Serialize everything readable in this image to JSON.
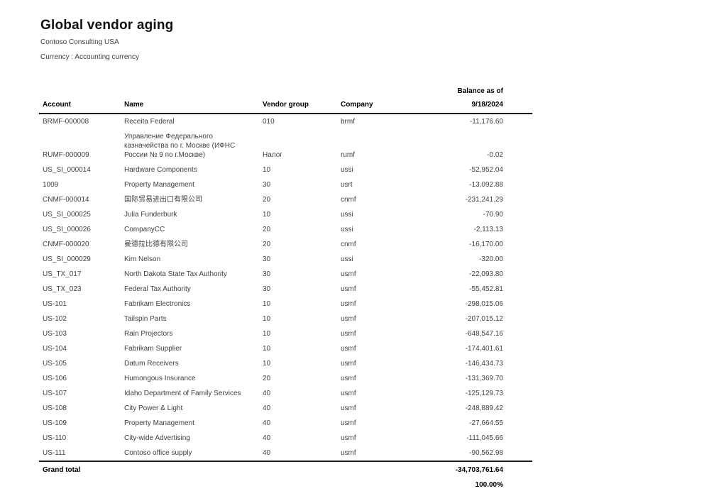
{
  "report": {
    "title": "Global vendor aging",
    "company": "Contoso Consulting USA",
    "currency_line": "Currency : Accounting currency"
  },
  "table": {
    "balance_header_line1": "Balance as of",
    "balance_header_line2": "9/18/2024",
    "columns": {
      "account": "Account",
      "name": "Name",
      "vendor_group": "Vendor group",
      "company": "Company"
    },
    "rows": [
      {
        "account": "BRMF-000008",
        "name": "Receita Federal",
        "vendor_group": "010",
        "company": "brmf",
        "balance": "-11,176.60"
      },
      {
        "account": "RUMF-000009",
        "name": "Управление Федерального казначейства по г. Москве (ИФНС России № 9 по г.Москве)",
        "vendor_group": "Налог",
        "company": "rumf",
        "balance": "-0.02"
      },
      {
        "account": "US_SI_000014",
        "name": "Hardware Components",
        "vendor_group": "10",
        "company": "ussi",
        "balance": "-52,952.04"
      },
      {
        "account": "1009",
        "name": "Property Management",
        "vendor_group": "30",
        "company": "usrt",
        "balance": "-13,092.88"
      },
      {
        "account": "CNMF-000014",
        "name": "国际贸易进出口有限公司",
        "vendor_group": "20",
        "company": "cnmf",
        "balance": "-231,241.29"
      },
      {
        "account": "US_SI_000025",
        "name": "Julia Funderburk",
        "vendor_group": "10",
        "company": "ussi",
        "balance": "-70.90"
      },
      {
        "account": "US_SI_000026",
        "name": "CompanyCC",
        "vendor_group": "20",
        "company": "ussi",
        "balance": "-2,113.13"
      },
      {
        "account": "CNMF-000020",
        "name": "曼德拉比德有限公司",
        "vendor_group": "20",
        "company": "cnmf",
        "balance": "-16,170.00"
      },
      {
        "account": "US_SI_000029",
        "name": "Kim Nelson",
        "vendor_group": "30",
        "company": "ussi",
        "balance": "-320.00"
      },
      {
        "account": "US_TX_017",
        "name": "North Dakota State Tax Authority",
        "vendor_group": "30",
        "company": "usmf",
        "balance": "-22,093.80"
      },
      {
        "account": "US_TX_023",
        "name": "Federal Tax Authority",
        "vendor_group": "30",
        "company": "usmf",
        "balance": "-55,452.81"
      },
      {
        "account": "US-101",
        "name": "Fabrikam Electronics",
        "vendor_group": "10",
        "company": "usmf",
        "balance": "-298,015.06"
      },
      {
        "account": "US-102",
        "name": "Tailspin Parts",
        "vendor_group": "10",
        "company": "usmf",
        "balance": "-207,015.12"
      },
      {
        "account": "US-103",
        "name": "Rain Projectors",
        "vendor_group": "10",
        "company": "usmf",
        "balance": "-648,547.16"
      },
      {
        "account": "US-104",
        "name": "Fabrikam Supplier",
        "vendor_group": "10",
        "company": "usmf",
        "balance": "-174,401.61"
      },
      {
        "account": "US-105",
        "name": "Datum Receivers",
        "vendor_group": "10",
        "company": "usmf",
        "balance": "-146,434.73"
      },
      {
        "account": "US-106",
        "name": "Humongous Insurance",
        "vendor_group": "20",
        "company": "usmf",
        "balance": "-131,369.70"
      },
      {
        "account": "US-107",
        "name": "Idaho Department of Family Services",
        "vendor_group": "40",
        "company": "usmf",
        "balance": "-125,129.73"
      },
      {
        "account": "US-108",
        "name": "City Power & Light",
        "vendor_group": "40",
        "company": "usmf",
        "balance": "-248,889.42"
      },
      {
        "account": "US-109",
        "name": "Property Management",
        "vendor_group": "40",
        "company": "usmf",
        "balance": "-27,664.55"
      },
      {
        "account": "US-110",
        "name": "City-wide Advertising",
        "vendor_group": "40",
        "company": "usmf",
        "balance": "-111,045.66"
      },
      {
        "account": "US-111",
        "name": "Contoso office supply",
        "vendor_group": "40",
        "company": "usmf",
        "balance": "-90,562.98"
      }
    ],
    "grand_total": {
      "label": "Grand total",
      "balance": "-34,703,761.64",
      "percent": "100.00%"
    }
  }
}
